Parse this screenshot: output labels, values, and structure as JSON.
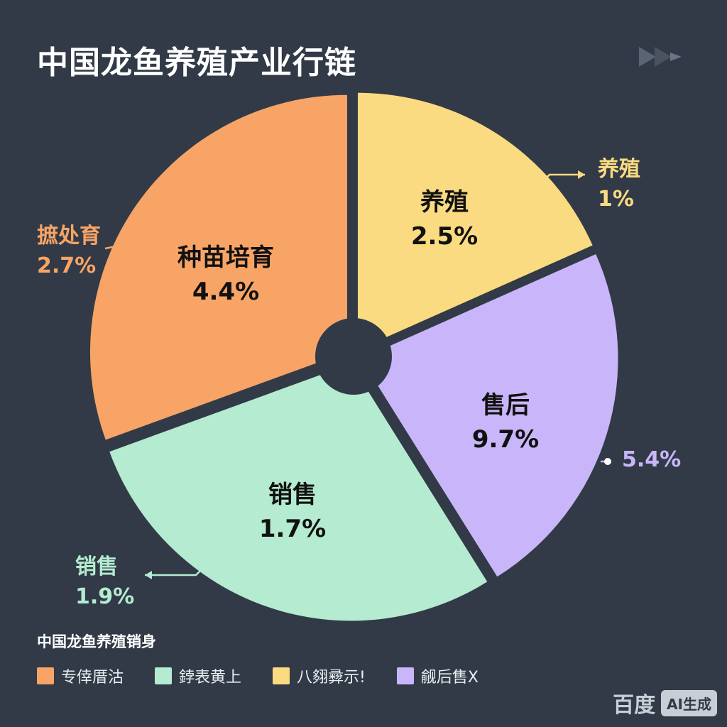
{
  "title": "中国龙鱼养殖产业行链",
  "chart_data": {
    "type": "pie",
    "slices": [
      {
        "label": "养殖",
        "value_label": "2.5%",
        "color": "#fbdb81"
      },
      {
        "label": "售后",
        "value_label": "9.7%",
        "color": "#c9b6fa"
      },
      {
        "label": "销售",
        "value_label": "1.7%",
        "color": "#b5ebd0"
      },
      {
        "label": "种苗培育",
        "value_label": "4.4%",
        "color": "#f7a466"
      }
    ],
    "outer_labels": [
      {
        "name": "养殖",
        "value": "1%",
        "color": "#fbdb81"
      },
      {
        "value": "5.4%",
        "color": "#c9b6fa"
      },
      {
        "name": "销售",
        "value": "1.9%",
        "color": "#b5ebd0"
      },
      {
        "name": "摭处育",
        "value": "2.7%",
        "color": "#f7a466"
      }
    ]
  },
  "legend": {
    "title": "中国龙鱼养殖销身",
    "items": [
      {
        "label": "专倖厝沽",
        "color": "#f7a466"
      },
      {
        "label": "鋍表黄上",
        "color": "#b5ebd0"
      },
      {
        "label": "八翗彛示!",
        "color": "#fbdb81"
      },
      {
        "label": "觎后售X",
        "color": "#c9b6fa"
      }
    ]
  },
  "watermark": {
    "text": "百度",
    "badge": "AI生成"
  }
}
